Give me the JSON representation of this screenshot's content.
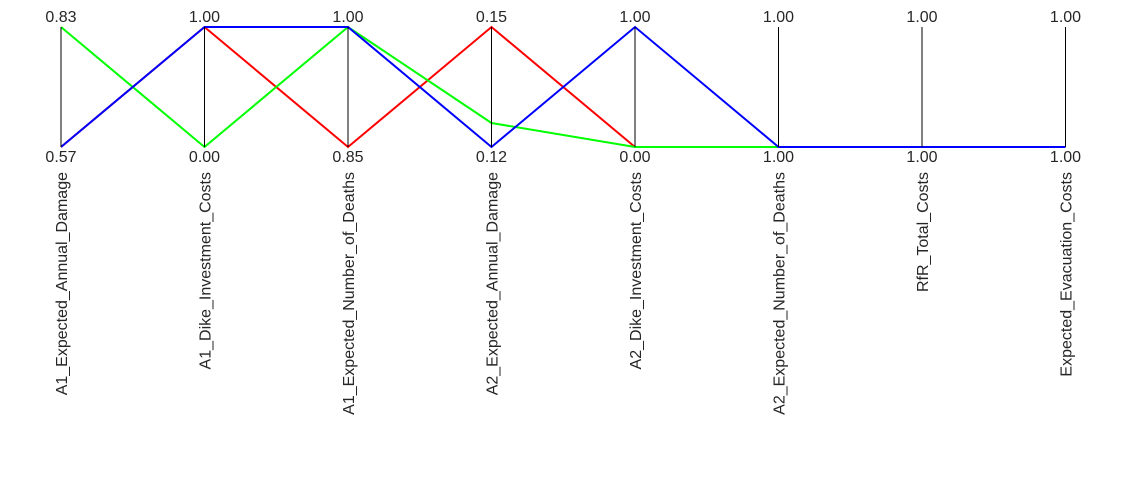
{
  "chart_data": {
    "type": "parallel_coordinates",
    "axes": [
      {
        "name": "A1_Expected_Annual_Damage",
        "max_label": "0.83",
        "min_label": "0.57"
      },
      {
        "name": "A1_Dike_Investment_Costs",
        "max_label": "1.00",
        "min_label": "0.00"
      },
      {
        "name": "A1_Expected_Number_of_Deaths",
        "max_label": "1.00",
        "min_label": "0.85"
      },
      {
        "name": "A2_Expected_Annual_Damage",
        "max_label": "0.15",
        "min_label": "0.12"
      },
      {
        "name": "A2_Dike_Investment_Costs",
        "max_label": "1.00",
        "min_label": "0.00"
      },
      {
        "name": "A2_Expected_Number_of_Deaths",
        "max_label": "1.00",
        "min_label": "1.00"
      },
      {
        "name": "RfR_Total_Costs",
        "max_label": "1.00",
        "min_label": "1.00"
      },
      {
        "name": "Expected_Evacuation_Costs",
        "max_label": "1.00",
        "min_label": "1.00"
      }
    ],
    "series": [
      {
        "color": "#ff0000",
        "values": [
          0.57,
          1.0,
          0.85,
          0.15,
          0.0,
          1.0,
          1.0,
          1.0
        ],
        "levels": [
          0,
          1,
          0,
          1,
          0,
          0,
          0,
          0
        ]
      },
      {
        "color": "#00ff00",
        "values": [
          0.83,
          0.0,
          1.0,
          0.12,
          0.0,
          1.0,
          1.0,
          1.0
        ],
        "levels": [
          1,
          0,
          1,
          0.2,
          0,
          0,
          0,
          0
        ]
      },
      {
        "color": "#0000ff",
        "values": [
          0.57,
          1.0,
          1.0,
          0.12,
          1.0,
          1.0,
          1.0,
          1.0
        ],
        "levels": [
          0,
          1,
          1,
          0,
          1,
          0,
          0,
          0
        ]
      }
    ],
    "grid": false,
    "legend": "none"
  }
}
